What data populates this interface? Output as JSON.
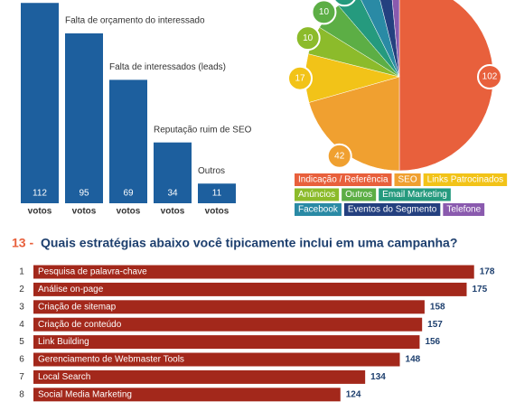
{
  "chart_data": [
    {
      "type": "bar",
      "categories": [
        null,
        "Falta de orçamento do interessado",
        "Falta de interessados (leads)",
        "Reputação ruim de SEO",
        "Outros"
      ],
      "values": [
        112,
        95,
        69,
        34,
        11
      ],
      "unit_label": "votos",
      "color": "#1d5f9e"
    },
    {
      "type": "pie",
      "series": [
        {
          "name": "Indicação / Referência",
          "color": "#e8603c",
          "value": 102
        },
        {
          "name": "SEO",
          "color": "#f0a030",
          "value": 42
        },
        {
          "name": "Links Patrocinados",
          "color": "#f2c318",
          "value": 17
        },
        {
          "name": "Anúncios",
          "color": "#8cbb2b",
          "value": 10
        },
        {
          "name": "Outros",
          "color": "#5cae45",
          "value": 10
        },
        {
          "name": "Email Marketing",
          "color": "#259a7e",
          "value": 8
        },
        {
          "name": "Facebook",
          "color": "#2a8aa5",
          "value": 7
        },
        {
          "name": "Eventos do Segmento",
          "color": "#24407f",
          "value": 5
        },
        {
          "name": "Telefone",
          "color": "#8a5aae",
          "value": 3
        }
      ]
    },
    {
      "type": "barh",
      "number": "13 -",
      "title": "Quais estratégias abaixo você tipicamente inclui em uma campanha?",
      "ranks": [
        1,
        2,
        3,
        4,
        5,
        6,
        7,
        8
      ],
      "categories": [
        "Pesquisa de palavra-chave",
        "Análise on-page",
        "Criação de sitemap",
        "Criação de conteúdo",
        "Link Building",
        "Gerenciamento de Webmaster Tools",
        "Local Search",
        "Social Media Marketing"
      ],
      "values": [
        178,
        175,
        158,
        157,
        156,
        148,
        134,
        124
      ],
      "color": "#a3281b"
    }
  ]
}
